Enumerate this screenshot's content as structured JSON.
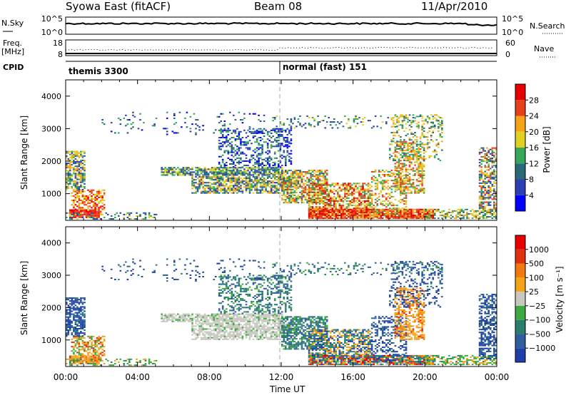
{
  "header": {
    "station": "Syowa East (fitACF)",
    "beam": "Beam 08",
    "date": "11/Apr/2010"
  },
  "noise_panel": {
    "left_label": "N.Sky",
    "left_ticks": [
      "10^5",
      "10^0"
    ],
    "right_ticks": [
      "10^5",
      "10^0"
    ],
    "right_label": "N.Search"
  },
  "freq_panel": {
    "left_label_line1": "Freq.",
    "left_label_line2": "[MHz]",
    "left_ticks": [
      "18",
      "8"
    ],
    "right_ticks": [
      "60",
      "0"
    ],
    "right_label": "Nave"
  },
  "cpid": {
    "label": "CPID",
    "modes": [
      {
        "name": "themis 3300",
        "start_hour": 0
      },
      {
        "name": "normal (fast) 151",
        "start_hour": 12
      }
    ]
  },
  "chart_data": [
    {
      "type": "heatmap",
      "parameter": "Power",
      "ylabel": "Slant Range [km]",
      "xlabel": "Time UT",
      "x_ticks": [
        "00:00",
        "04:00",
        "08:00",
        "12:00",
        "16:00",
        "20:00",
        "00:00"
      ],
      "x_range_hours": [
        0,
        24
      ],
      "y_ticks": [
        1000,
        2000,
        3000,
        4000
      ],
      "y_range_km": [
        180,
        4500
      ],
      "colorbar": {
        "label": "Power [dB]",
        "ticks": [
          "4",
          "8",
          "12",
          "16",
          "20",
          "24",
          "28"
        ],
        "range": [
          0,
          30
        ],
        "colors": [
          "#0000ff",
          "#2e3fb5",
          "#2a6a78",
          "#36a85a",
          "#e0d020",
          "#f5a418",
          "#e8401c",
          "#e80000"
        ]
      }
    },
    {
      "type": "heatmap",
      "parameter": "Velocity",
      "ylabel": "Slant Range [km]",
      "xlabel": "Time UT",
      "x_ticks": [
        "00:00",
        "04:00",
        "08:00",
        "12:00",
        "16:00",
        "20:00",
        "00:00"
      ],
      "x_range_hours": [
        0,
        24
      ],
      "y_ticks": [
        1000,
        2000,
        3000,
        4000
      ],
      "y_range_km": [
        180,
        4500
      ],
      "colorbar": {
        "label": "Velocity [m s⁻¹]",
        "ticks": [
          "1000",
          "500",
          "100",
          "25",
          "−25",
          "−100",
          "−500",
          "−1000"
        ],
        "colors": [
          "#1f3fa8",
          "#2e5e9e",
          "#2a7f6c",
          "#3faa40",
          "#c8c8c0",
          "#f5a418",
          "#f07a10",
          "#e03010",
          "#e80000"
        ]
      }
    }
  ]
}
